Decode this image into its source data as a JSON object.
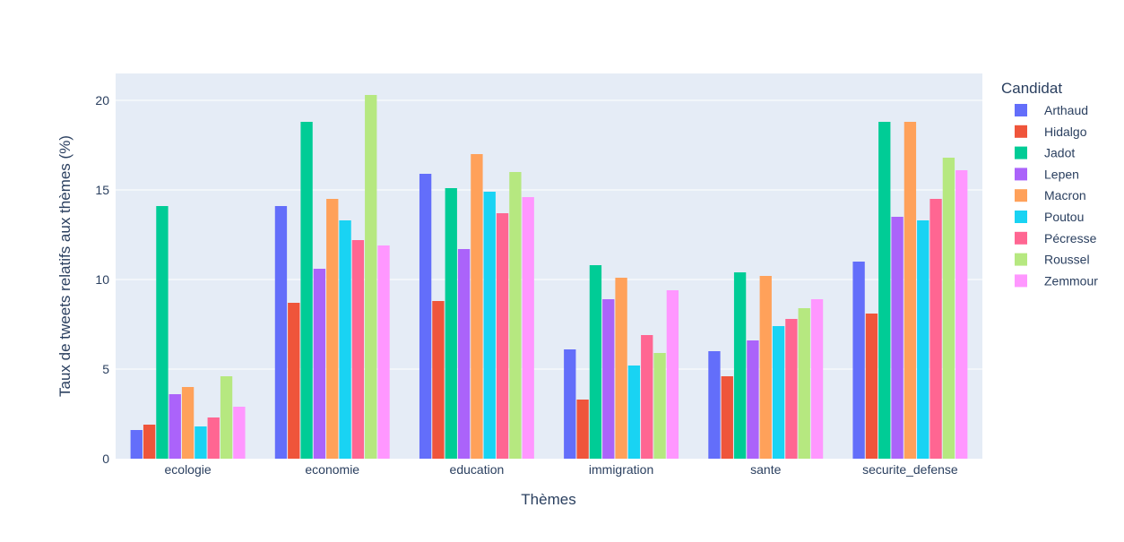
{
  "chart_data": {
    "type": "bar",
    "title": "",
    "xlabel": "Thèmes",
    "ylabel": "Taux de tweets relatifs aux thèmes (%)",
    "categories": [
      "ecologie",
      "economie",
      "education",
      "immigration",
      "sante",
      "securite_defense"
    ],
    "ylim": [
      0,
      21.5
    ],
    "yticks": [
      0,
      5,
      10,
      15,
      20
    ],
    "grid": true,
    "legend": {
      "title": "Candidat",
      "placement": "right"
    },
    "series": [
      {
        "name": "Arthaud",
        "color": "#636efa",
        "values": [
          1.6,
          14.1,
          15.9,
          6.1,
          6.0,
          11.0
        ]
      },
      {
        "name": "Hidalgo",
        "color": "#ef553b",
        "values": [
          1.9,
          8.7,
          8.8,
          3.3,
          4.6,
          8.1
        ]
      },
      {
        "name": "Jadot",
        "color": "#00cc96",
        "values": [
          14.1,
          18.8,
          15.1,
          10.8,
          10.4,
          18.8
        ]
      },
      {
        "name": "Lepen",
        "color": "#ab63fa",
        "values": [
          3.6,
          10.6,
          11.7,
          8.9,
          6.6,
          13.5
        ]
      },
      {
        "name": "Macron",
        "color": "#ffa15a",
        "values": [
          4.0,
          14.5,
          17.0,
          10.1,
          10.2,
          18.8
        ]
      },
      {
        "name": "Poutou",
        "color": "#19d3f3",
        "values": [
          1.8,
          13.3,
          14.9,
          5.2,
          7.4,
          13.3
        ]
      },
      {
        "name": "Pécresse",
        "color": "#ff6692",
        "values": [
          2.3,
          12.2,
          13.7,
          6.9,
          7.8,
          14.5
        ]
      },
      {
        "name": "Roussel",
        "color": "#b6e880",
        "values": [
          4.6,
          20.3,
          16.0,
          5.9,
          8.4,
          16.8
        ]
      },
      {
        "name": "Zemmour",
        "color": "#ff97ff",
        "values": [
          2.9,
          11.9,
          14.6,
          9.4,
          8.9,
          16.1
        ]
      }
    ]
  }
}
